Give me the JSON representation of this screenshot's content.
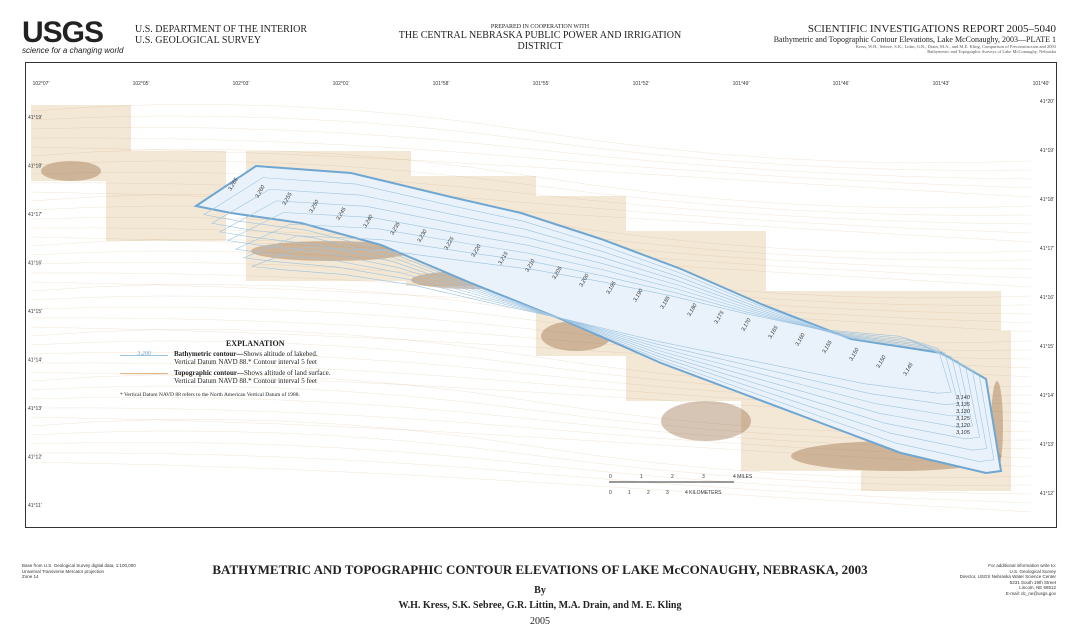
{
  "header": {
    "logo": "USGS",
    "tagline": "science for a changing world",
    "dept_line1": "U.S. DEPARTMENT OF THE INTERIOR",
    "dept_line2": "U.S. GEOLOGICAL SURVEY",
    "coop_line1": "PREPARED IN COOPERATION WITH",
    "coop_line2": "THE CENTRAL NEBRASKA PUBLIC POWER AND IRRIGATION DISTRICT",
    "report": "SCIENTIFIC INVESTIGATIONS REPORT 2005–5040",
    "plate": "Bathymetric and Topographic Contour Elevations, Lake McConaughy, 2003—PLATE 1",
    "citation1": "Kress, W.H., Sebree, S.K., Littin, G.R., Drain, M.A., and M.E. Kling, Comparison of Preconstruction and 2003",
    "citation2": "Bathymetric and Topographic Surveys of Lake McConaughy, Nebraska"
  },
  "map": {
    "top_longitudes": [
      "102°07'",
      "102°05'",
      "102°03'",
      "102°01'",
      "101°58'",
      "101°55'",
      "101°52'",
      "101°49'",
      "101°46'",
      "101°43'",
      "101°40'"
    ],
    "bottom_longitudes": [
      "102°5'",
      "102°3'",
      "102°1'",
      "101°58'",
      "101°55'",
      "101°52'",
      "101°49'",
      "101°46'",
      "101°43'",
      "101°40'"
    ],
    "left_latitudes": [
      "41°19'",
      "41°18'",
      "41°17'",
      "41°16'",
      "41°15'",
      "41°14'",
      "41°13'",
      "41°12'",
      "41°11'"
    ],
    "right_latitudes": [
      "41°20'",
      "41°19'",
      "41°18'",
      "41°17'",
      "41°16'",
      "41°15'",
      "41°14'",
      "41°13'",
      "41°12'"
    ],
    "contour_labels": [
      "3,265",
      "3,260",
      "3,255",
      "3,250",
      "3,245",
      "3,240",
      "3,235",
      "3,230",
      "3,225",
      "3,220",
      "3,215",
      "3,210",
      "3,205",
      "3,200",
      "3,195",
      "3,190",
      "3,185",
      "3,180",
      "3,175",
      "3,170",
      "3,165",
      "3,160",
      "3,155",
      "3,150",
      "3,150",
      "3,145",
      "3,140",
      "3,135",
      "3,130",
      "3,125",
      "3,120",
      "3,105"
    ],
    "colors": {
      "water": "#9cc3e0",
      "bathymetric": "#6fa6d2",
      "topographic": "#c9a06a",
      "shadow": "#8a5a2a"
    },
    "scale": {
      "miles": [
        "0",
        "1",
        "2",
        "3",
        "4 MILES"
      ],
      "km": [
        "0",
        "1",
        "2",
        "3",
        "4 KILOMETERS"
      ]
    }
  },
  "explanation": {
    "title": "EXPLANATION",
    "sample": "3,200",
    "bath_bold": "Bathymetric contour—",
    "bath_text": "Shows altitude of lakebed.",
    "bath_line2": "Vertical Datum NAVD 88.* Contour interval 5 feet",
    "topo_bold": "Topographic contour—",
    "topo_text": "Shows altitude of land surface.",
    "topo_line2": "Vertical Datum NAVD 88.*  Contour interval 5 feet",
    "footnote": "* Vertical Datum NAVD 88 refers to the North American Vertical Datum of 1988."
  },
  "footer": {
    "base1": "Base from U.S. Geological Survey digital data, 1:100,000",
    "base2": "Universal Transverse Mercator projection",
    "base3": "Zone 14",
    "info": [
      "For additional information write to:",
      "U.S. Geological Survey",
      "Director, USGS Nebraska Water Science Center",
      "5231 South 19th Street",
      "Lincoln, NE 68512",
      "E-mail: dc_ne@usgs.gov"
    ],
    "title": "BATHYMETRIC AND TOPOGRAPHIC CONTOUR ELEVATIONS OF LAKE McCONAUGHY, NEBRASKA, 2003",
    "by": "By",
    "authors": "W.H. Kress, S.K. Sebree, G.R. Littin, M.A. Drain, and M. E. Kling",
    "year": "2005"
  }
}
